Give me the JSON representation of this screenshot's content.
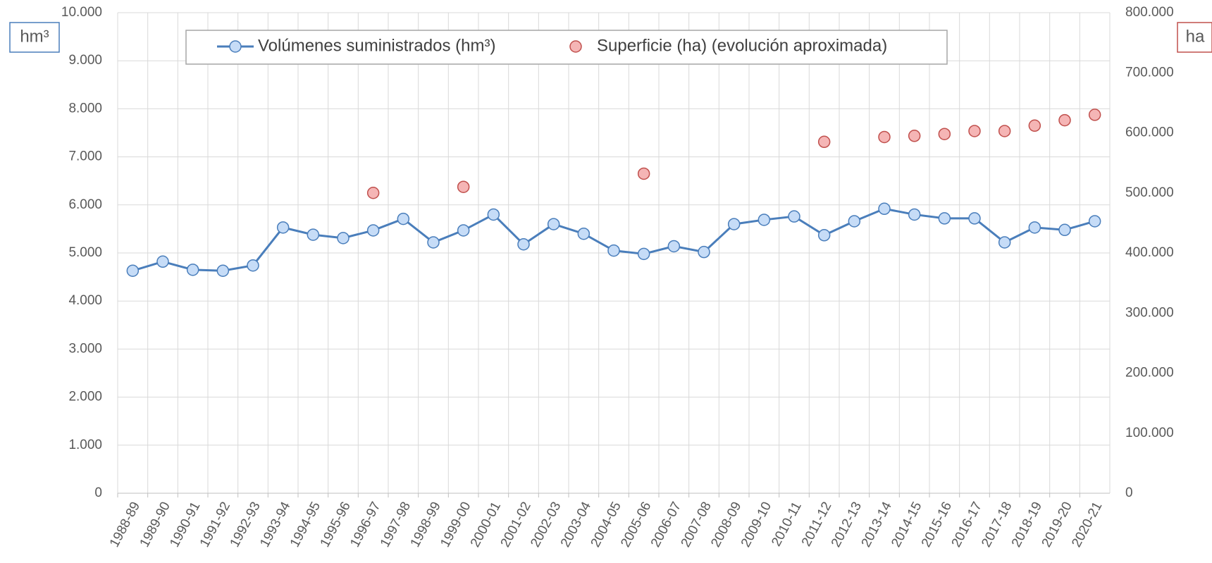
{
  "chart_data": {
    "type": "line",
    "y_label": "hm³",
    "y2_label": "ha",
    "categories": [
      "1988-89",
      "1989-90",
      "1990-91",
      "1991-92",
      "1992-93",
      "1993-94",
      "1994-95",
      "1995-96",
      "1996-97",
      "1997-98",
      "1998-99",
      "1999-00",
      "2000-01",
      "2001-02",
      "2002-03",
      "2003-04",
      "2004-05",
      "2005-06",
      "2006-07",
      "2007-08",
      "2008-09",
      "2009-10",
      "2010-11",
      "2011-12",
      "2012-13",
      "2013-14",
      "2014-15",
      "2015-16",
      "2016-17",
      "2017-18",
      "2018-19",
      "2019-20",
      "2020-21"
    ],
    "series": [
      {
        "name": "Volúmenes suministrados (hm³)",
        "type": "line",
        "color": "#4a7ebb",
        "marker_color": "#c6dcf7",
        "values": [
          4630,
          4820,
          4650,
          4630,
          4740,
          5530,
          5380,
          5310,
          5470,
          5710,
          5220,
          5470,
          5800,
          5180,
          5600,
          5400,
          5050,
          4980,
          5140,
          5020,
          5600,
          5690,
          5760,
          5370,
          5660,
          5920,
          5800,
          5720,
          5720,
          5220,
          5530,
          5480,
          5660
        ]
      },
      {
        "name": "Superficie (ha) (evolución aproximada)",
        "type": "scatter",
        "axis": "y2",
        "color": "#c0504d",
        "marker_color": "#f5b5b5",
        "values": [
          null,
          null,
          null,
          null,
          null,
          null,
          null,
          null,
          500000,
          null,
          null,
          510000,
          null,
          null,
          null,
          null,
          null,
          532000,
          null,
          null,
          null,
          null,
          null,
          585000,
          null,
          593000,
          595000,
          598000,
          603000,
          603000,
          612000,
          621000,
          630000
        ]
      }
    ],
    "ylim": [
      0,
      10000
    ],
    "yticks": [
      0,
      {
        "value": 1000,
        "label": "1.000"
      },
      {
        "value": 2000,
        "label": "2.000"
      },
      {
        "value": 3000,
        "label": "3.000"
      },
      {
        "value": 4000,
        "label": "4.000"
      },
      {
        "value": 5000,
        "label": "5.000"
      },
      {
        "value": 6000,
        "label": "6.000"
      },
      {
        "value": 7000,
        "label": "7.000"
      },
      {
        "value": 8000,
        "label": "8.000"
      },
      {
        "value": 9000,
        "label": "9.000"
      },
      {
        "value": 10000,
        "label": "10.000"
      }
    ],
    "y2lim": [
      0,
      800000
    ],
    "y2ticks": [
      0,
      {
        "value": 100000,
        "label": "100.000"
      },
      {
        "value": 200000,
        "label": "200.000"
      },
      {
        "value": 300000,
        "label": "300.000"
      },
      {
        "value": 400000,
        "label": "400.000"
      },
      {
        "value": 500000,
        "label": "500.000"
      },
      {
        "value": 600000,
        "label": "600.000"
      },
      {
        "value": 700000,
        "label": "700.000"
      },
      {
        "value": 800000,
        "label": "800.000"
      }
    ],
    "grid": true
  }
}
